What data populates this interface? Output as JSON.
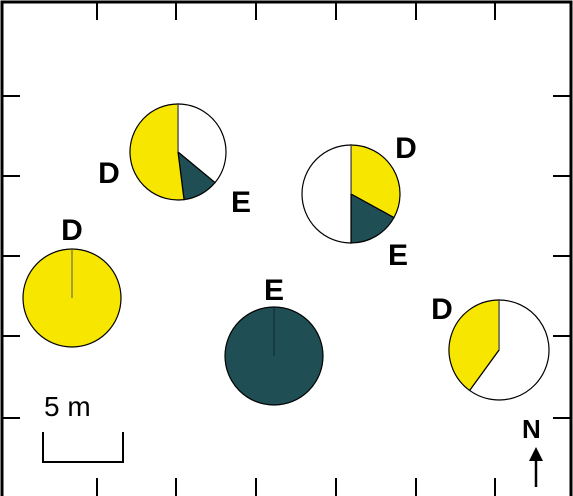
{
  "chart_data": {
    "type": "pie",
    "description_units": "proportions of each pie (yellow = D, dark = E, white = remainder)",
    "colors": {
      "D": "#F7E600",
      "E": "#1F4E55",
      "other": "#FFFFFF",
      "frame": "#000000"
    },
    "pies": [
      {
        "id": "pie-1",
        "slices": [
          {
            "cat": "other",
            "value": 0.36
          },
          {
            "cat": "E",
            "value": 0.12
          },
          {
            "cat": "D",
            "value": 0.52
          }
        ],
        "labels": [
          {
            "text": "D"
          },
          {
            "text": "E"
          }
        ]
      },
      {
        "id": "pie-2",
        "slices": [
          {
            "cat": "D",
            "value": 0.33
          },
          {
            "cat": "E",
            "value": 0.17
          },
          {
            "cat": "other",
            "value": 0.5
          }
        ],
        "labels": [
          {
            "text": "D"
          },
          {
            "text": "E"
          }
        ]
      },
      {
        "id": "pie-3",
        "slices": [
          {
            "cat": "D",
            "value": 1.0
          }
        ],
        "labels": [
          {
            "text": "D"
          }
        ]
      },
      {
        "id": "pie-4",
        "slices": [
          {
            "cat": "E",
            "value": 1.0
          }
        ],
        "labels": [
          {
            "text": "E"
          }
        ]
      },
      {
        "id": "pie-5",
        "slices": [
          {
            "cat": "other",
            "value": 0.6
          },
          {
            "cat": "D",
            "value": 0.4
          }
        ],
        "labels": [
          {
            "text": "D"
          }
        ]
      }
    ],
    "scale_bar": {
      "text": "5 m"
    },
    "north_arrow": {
      "text": "N"
    }
  }
}
